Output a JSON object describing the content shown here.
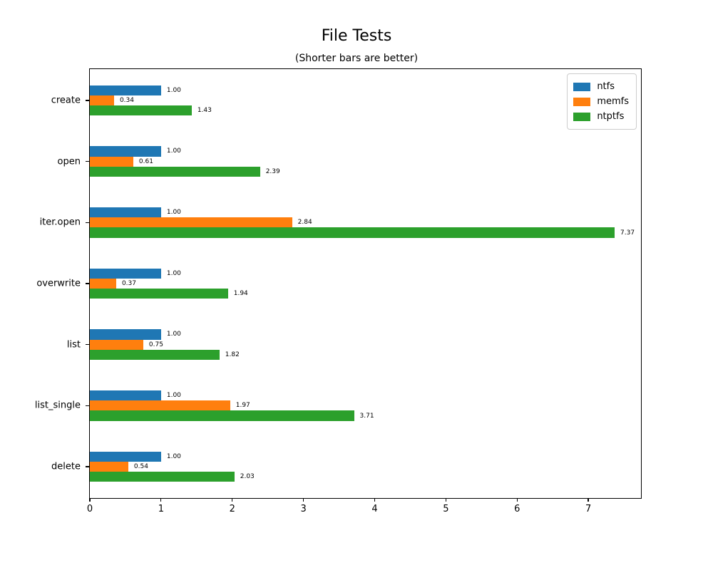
{
  "title": "File Tests",
  "subtitle": "(Shorter bars are better)",
  "chart_data": {
    "type": "bar",
    "orientation": "horizontal",
    "title": "File Tests",
    "subtitle": "(Shorter bars are better)",
    "categories": [
      "create",
      "open",
      "iter.open",
      "overwrite",
      "list",
      "list_single",
      "delete"
    ],
    "series": [
      {
        "name": "ntfs",
        "color": "#1f77b4",
        "values": [
          1.0,
          1.0,
          1.0,
          1.0,
          1.0,
          1.0,
          1.0
        ]
      },
      {
        "name": "memfs",
        "color": "#ff7f0e",
        "values": [
          0.34,
          0.61,
          2.84,
          0.37,
          0.75,
          1.97,
          0.54
        ]
      },
      {
        "name": "ntptfs",
        "color": "#2ca02c",
        "values": [
          1.43,
          2.39,
          7.37,
          1.94,
          1.82,
          3.71,
          2.03
        ]
      }
    ],
    "bar_value_labels": [
      "1.00",
      "0.34",
      "1.43",
      "1.00",
      "0.61",
      "2.39",
      "1.00",
      "2.84",
      "7.37",
      "1.00",
      "0.37",
      "1.94",
      "1.00",
      "0.75",
      "1.82",
      "1.00",
      "1.97",
      "3.71",
      "1.00",
      "0.54",
      "2.03"
    ],
    "xlabel": "",
    "ylabel": "",
    "xlim": [
      0,
      7.74
    ],
    "xticks": [
      "0",
      "1",
      "2",
      "3",
      "4",
      "5",
      "6",
      "7"
    ],
    "grid": false,
    "legend": {
      "position": "upper right",
      "entries": [
        "ntfs",
        "memfs",
        "ntptfs"
      ]
    }
  }
}
